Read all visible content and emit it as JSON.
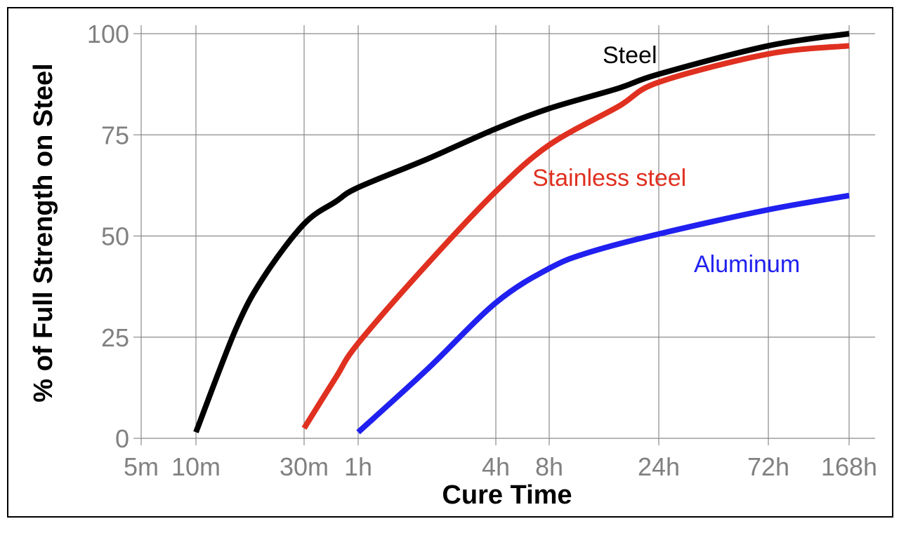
{
  "chart_data": {
    "type": "line",
    "xlabel": "Cure Time",
    "ylabel": "% of Full Strength on Steel",
    "x_scale": "log",
    "x_ticks": [
      {
        "label": "5m",
        "hours": 0.0833
      },
      {
        "label": "10m",
        "hours": 0.1667
      },
      {
        "label": "30m",
        "hours": 0.5
      },
      {
        "label": "1h",
        "hours": 1
      },
      {
        "label": "4h",
        "hours": 4
      },
      {
        "label": "8h",
        "hours": 8
      },
      {
        "label": "24h",
        "hours": 24
      },
      {
        "label": "72h",
        "hours": 72
      },
      {
        "label": "168h",
        "hours": 168
      }
    ],
    "y_ticks": [
      0,
      25,
      50,
      75,
      100
    ],
    "ylim": [
      0,
      100
    ],
    "grid": true,
    "series": [
      {
        "name": "Steel",
        "color": "#000000",
        "label_color": "#000000",
        "points": [
          {
            "hours": 0.1667,
            "value": 1.5
          },
          {
            "hours": 0.25,
            "value": 27
          },
          {
            "hours": 0.333,
            "value": 40
          },
          {
            "hours": 0.5,
            "value": 53
          },
          {
            "hours": 0.75,
            "value": 58.5
          },
          {
            "hours": 1,
            "value": 62
          },
          {
            "hours": 2,
            "value": 69
          },
          {
            "hours": 4,
            "value": 76.5
          },
          {
            "hours": 8,
            "value": 81.5
          },
          {
            "hours": 16,
            "value": 86.5
          },
          {
            "hours": 24,
            "value": 90
          },
          {
            "hours": 72,
            "value": 97
          },
          {
            "hours": 168,
            "value": 100
          }
        ]
      },
      {
        "name": "Stainless steel",
        "color": "#e03020",
        "label_color": "#e03020",
        "points": [
          {
            "hours": 0.5,
            "value": 2.5
          },
          {
            "hours": 0.75,
            "value": 15
          },
          {
            "hours": 1,
            "value": 23.5
          },
          {
            "hours": 2,
            "value": 43
          },
          {
            "hours": 4,
            "value": 61
          },
          {
            "hours": 8,
            "value": 72.5
          },
          {
            "hours": 16,
            "value": 82
          },
          {
            "hours": 24,
            "value": 88
          },
          {
            "hours": 72,
            "value": 95
          },
          {
            "hours": 168,
            "value": 97
          }
        ]
      },
      {
        "name": "Aluminum",
        "color": "#2020f0",
        "label_color": "#2020f0",
        "points": [
          {
            "hours": 1,
            "value": 1.5
          },
          {
            "hours": 2,
            "value": 17
          },
          {
            "hours": 4,
            "value": 33.5
          },
          {
            "hours": 8,
            "value": 42
          },
          {
            "hours": 12,
            "value": 46
          },
          {
            "hours": 24,
            "value": 50.5
          },
          {
            "hours": 72,
            "value": 56.5
          },
          {
            "hours": 168,
            "value": 60
          }
        ]
      }
    ]
  }
}
